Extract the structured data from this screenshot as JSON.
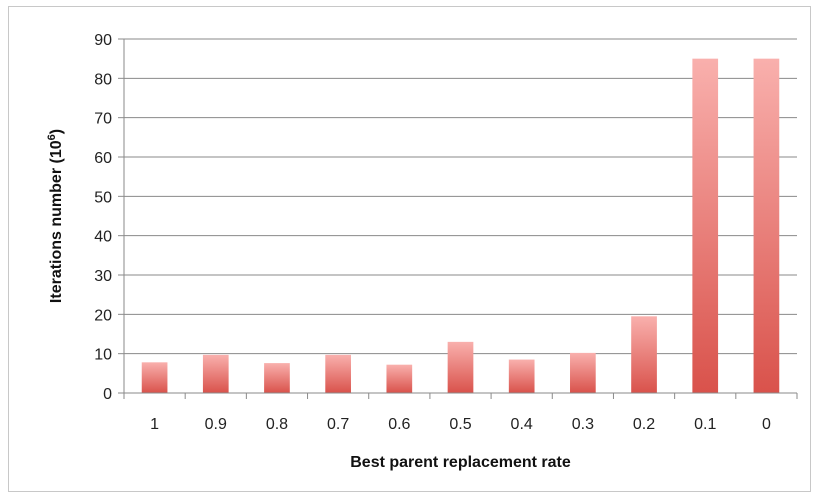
{
  "chart_data": {
    "type": "bar",
    "title": "",
    "xlabel": "Best parent replacement rate",
    "ylabel": {
      "base": "Iterations number (10",
      "superscript": "6",
      "suffix": ")"
    },
    "categories": [
      "1",
      "0.9",
      "0.8",
      "0.7",
      "0.6",
      "0.5",
      "0.4",
      "0.3",
      "0.2",
      "0.1",
      "0"
    ],
    "values": [
      7.8,
      9.7,
      7.6,
      9.7,
      7.2,
      13.0,
      8.5,
      10.2,
      19.5,
      85.0,
      85.0
    ],
    "ylim": [
      0,
      90
    ],
    "yticks": [
      0,
      10,
      20,
      30,
      40,
      50,
      60,
      70,
      80,
      90
    ],
    "grid": true,
    "legend": "none",
    "colors": {
      "bar_top": "#f9b0ad",
      "bar_bottom": "#d9524b",
      "gridline": "#8a8a8a",
      "axis": "#8a8a8a"
    }
  }
}
